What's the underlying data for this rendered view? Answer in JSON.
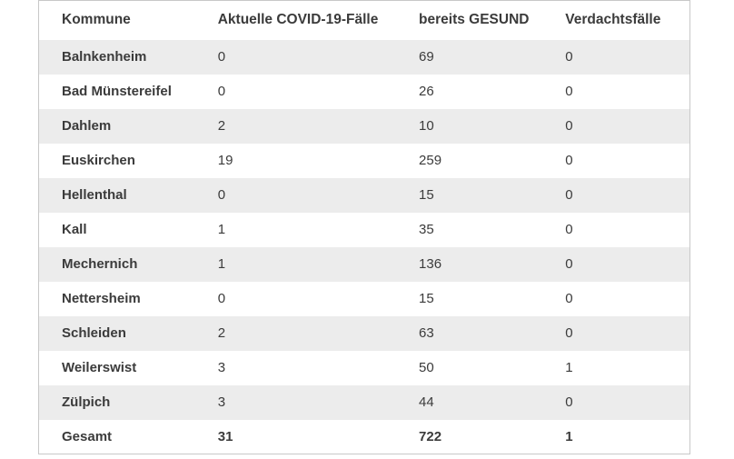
{
  "table": {
    "columns": [
      "Kommune",
      "Aktuelle COVID-19-Fälle",
      "bereits GESUND",
      "Verdachtsfälle"
    ],
    "rows": [
      {
        "kommune": "Balnkenheim",
        "aktuelle": "0",
        "gesund": "69",
        "verdacht": "0"
      },
      {
        "kommune": "Bad Münstereifel",
        "aktuelle": "0",
        "gesund": "26",
        "verdacht": "0"
      },
      {
        "kommune": "Dahlem",
        "aktuelle": "2",
        "gesund": "10",
        "verdacht": "0"
      },
      {
        "kommune": "Euskirchen",
        "aktuelle": "19",
        "gesund": "259",
        "verdacht": "0"
      },
      {
        "kommune": "Hellenthal",
        "aktuelle": "0",
        "gesund": "15",
        "verdacht": "0"
      },
      {
        "kommune": "Kall",
        "aktuelle": "1",
        "gesund": "35",
        "verdacht": "0"
      },
      {
        "kommune": "Mechernich",
        "aktuelle": "1",
        "gesund": "136",
        "verdacht": "0"
      },
      {
        "kommune": "Nettersheim",
        "aktuelle": "0",
        "gesund": "15",
        "verdacht": "0"
      },
      {
        "kommune": "Schleiden",
        "aktuelle": "2",
        "gesund": "63",
        "verdacht": "0"
      },
      {
        "kommune": "Weilerswist",
        "aktuelle": "3",
        "gesund": "50",
        "verdacht": "1"
      },
      {
        "kommune": "Zülpich",
        "aktuelle": "3",
        "gesund": "44",
        "verdacht": "0"
      }
    ],
    "total": {
      "kommune": "Gesamt",
      "aktuelle": "31",
      "gesund": "722",
      "verdacht": "1"
    }
  },
  "colors": {
    "stripe": "#ececec",
    "border": "#c8c8c8",
    "text": "#3b3b3b",
    "background": "#ffffff"
  }
}
